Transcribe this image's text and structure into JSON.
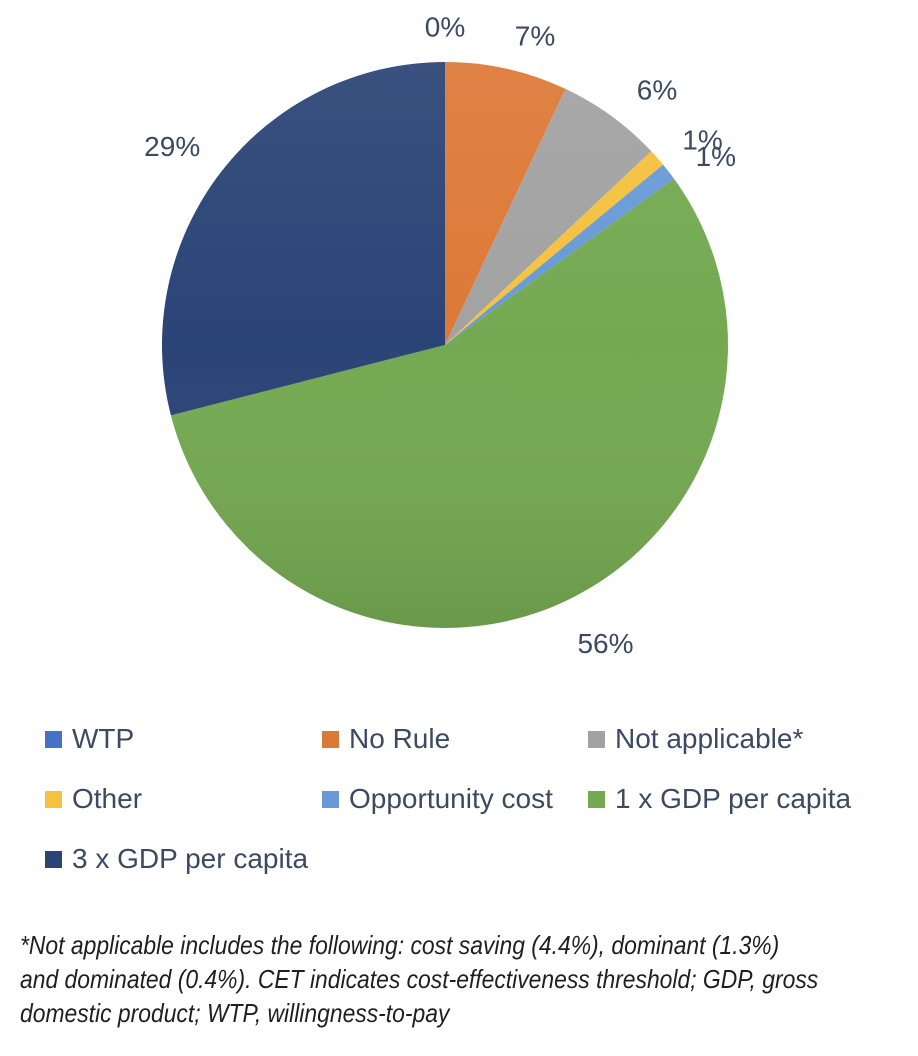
{
  "chart_data": {
    "type": "pie",
    "title": "",
    "direction": "clockwise",
    "start_angle_deg": 0,
    "legend_position": "bottom",
    "data_label_color": "#3B4A62",
    "slices": [
      {
        "label": "WTP",
        "value": 0,
        "display": "0%",
        "color": "#4472C4"
      },
      {
        "label": "No Rule",
        "value": 7,
        "display": "7%",
        "color": "#DD7937"
      },
      {
        "label": "Not applicable*",
        "value": 6,
        "display": "6%",
        "color": "#A2A2A2"
      },
      {
        "label": "Other",
        "value": 1,
        "display": "1%",
        "color": "#F5C13E"
      },
      {
        "label": "Opportunity cost",
        "value": 1,
        "display": "1%",
        "color": "#699AD7"
      },
      {
        "label": "1 x GDP per capita",
        "value": 56,
        "display": "56%",
        "color": "#74A951"
      },
      {
        "label": "3 x GDP per capita",
        "value": 29,
        "display": "29%",
        "color": "#2B4476"
      }
    ]
  },
  "legend": {
    "items": [
      {
        "label": "WTP",
        "color": "#4472C4"
      },
      {
        "label": "No Rule",
        "color": "#DD7937"
      },
      {
        "label": "Not applicable*",
        "color": "#A2A2A2"
      },
      {
        "label": "Other",
        "color": "#F5C13E"
      },
      {
        "label": "Opportunity cost",
        "color": "#699AD7"
      },
      {
        "label": "1 x GDP per capita",
        "color": "#74A951"
      },
      {
        "label": "3 x GDP per capita",
        "color": "#2B4476"
      }
    ]
  },
  "footnote": {
    "text": "*Not applicable includes the following: cost saving (4.4%), dominant (1.3%) and dominated (0.4%). CET indicates cost-effectiveness threshold; GDP, gross domestic product; WTP, willingness-to-pay",
    "lines": [
      "*Not applicable includes the following: cost saving (4.4%), dominant (1.3%)",
      "and dominated (0.4%). CET indicates cost-effectiveness threshold; GDP, gross",
      "domestic product; WTP, willingness-to-pay"
    ]
  }
}
